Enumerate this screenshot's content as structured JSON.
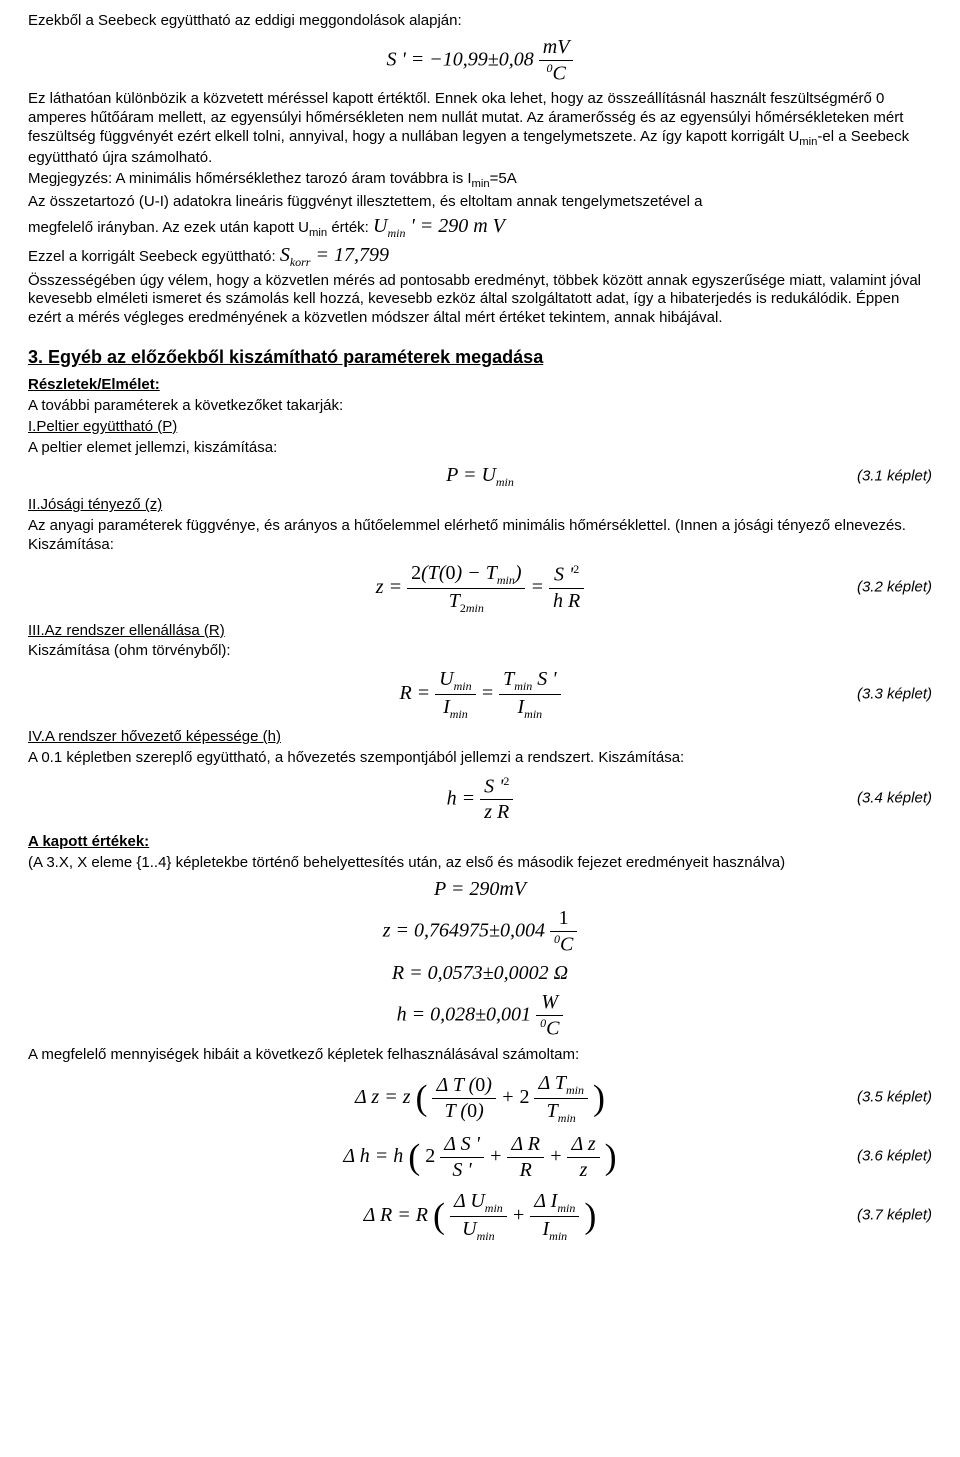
{
  "p1": "Ezekből a Seebeck együttható az eddigi meggondolások alapján:",
  "f1": {
    "lhs": "S ' = −10,99±0,08",
    "frac_num": "mV",
    "frac_den_sup": "0",
    "frac_den": "C"
  },
  "p2": "Ez láthatóan különbözik a közvetett méréssel kapott értéktől. Ennek oka lehet, hogy az összeállításnál használt feszültségmérő 0 amperes hűtőáram mellett, az egyensúlyi hőmérsékleten nem nullát mutat. Az áramerősség és az egyensúlyi hőmérsékleteken mért feszültség függvényét ezért elkell tolni, annyival, hogy a nullában legyen a tengelymetszete. Az így kapott korrigált U",
  "p2_sub": "min",
  "p2b": "-el a Seebeck együttható újra számolható.",
  "p3a": "Megjegyzés: A minimális hőmérséklethez tarozó áram továbbra is I",
  "p3sub": "min",
  "p3b": "=5A",
  "p4": "Az összetartozó (U-I) adatokra lineáris függvényt illesztettem, és eltoltam annak tengelymetszetével a",
  "p5a": "megfelelő irányban. Az ezek után kapott U",
  "p5sub": "min",
  "p5b": " érték:  ",
  "f2": "U",
  "f2sub": "min",
  "f2b": " ' = 290 m V",
  "p6a": "Ezzel a korrigált Seebeck együttható:   ",
  "f3": "S",
  "f3sub": "korr",
  "f3b": " = 17,799",
  "p7": "Összességében úgy vélem, hogy a közvetlen mérés ad pontosabb eredményt, többek között annak egyszerűsége miatt, valamint jóval kevesebb elméleti ismeret és számolás kell hozzá, kevesebb ezköz által szolgáltatott adat, így a hibaterjedés is redukálódik. Éppen ezért a mérés végleges eredményének a közvetlen módszer által mért értéket tekintem, annak hibájával.",
  "sec3": "3. Egyéb az előzőekből kiszámítható paraméterek megadása",
  "st_details": "Részletek/Elmélet:",
  "p8": "A további paraméterek a következőket takarják:",
  "li1": "I.Peltier együttható (P)",
  "p9": "A peltier elemet jellemzi, kiszámítása:",
  "eq31": {
    "text": "P = U",
    "sub": "min",
    "label": "(3.1 képlet)"
  },
  "li2": "II.Jósági tényező (z)",
  "p10": "Az anyagi paraméterek függvénye, és arányos a hűtőelemmel elérhető minimális hőmérséklettel. (Innen a jósági tényező elnevezés. Kiszámítása:",
  "eq32": {
    "label": "(3.2 képlet)"
  },
  "li3": "III.Az rendszer ellenállása (R)",
  "p11": "Kiszámítása (ohm törvényből):",
  "eq33": {
    "label": "(3.3 képlet)"
  },
  "li4": "IV.A rendszer hővezető képessége (h)",
  "p12": "A 0.1 képletben szereplő együttható, a hővezetés szempontjából jellemzi a rendszert. Kiszámítása:",
  "eq34": {
    "label": "(3.4 képlet)"
  },
  "st_values": "A kapott értékek:",
  "p13": "(A 3.X, X eleme {1..4} képletekbe történő behelyettesítés után, az első és második fejezet eredményeit használva)",
  "res": {
    "P": "P = 290mV",
    "z_lhs": "z = 0,764975±0,004",
    "z_frac_num": "1",
    "z_frac_den_sup": "0",
    "z_frac_den": "C",
    "R": "R = 0,0573±0,0002 Ω",
    "h_lhs": "h = 0,028±0,001",
    "h_frac_num": "W",
    "h_frac_den_sup": "0",
    "h_frac_den": "C"
  },
  "p14": "A megfelelő mennyiségek hibáit a következő képletek felhasználásával számoltam:",
  "eq35": {
    "label": "(3.5 képlet)"
  },
  "eq36": {
    "label": "(3.6 képlet)"
  },
  "eq37": {
    "label": "(3.7 képlet)"
  }
}
